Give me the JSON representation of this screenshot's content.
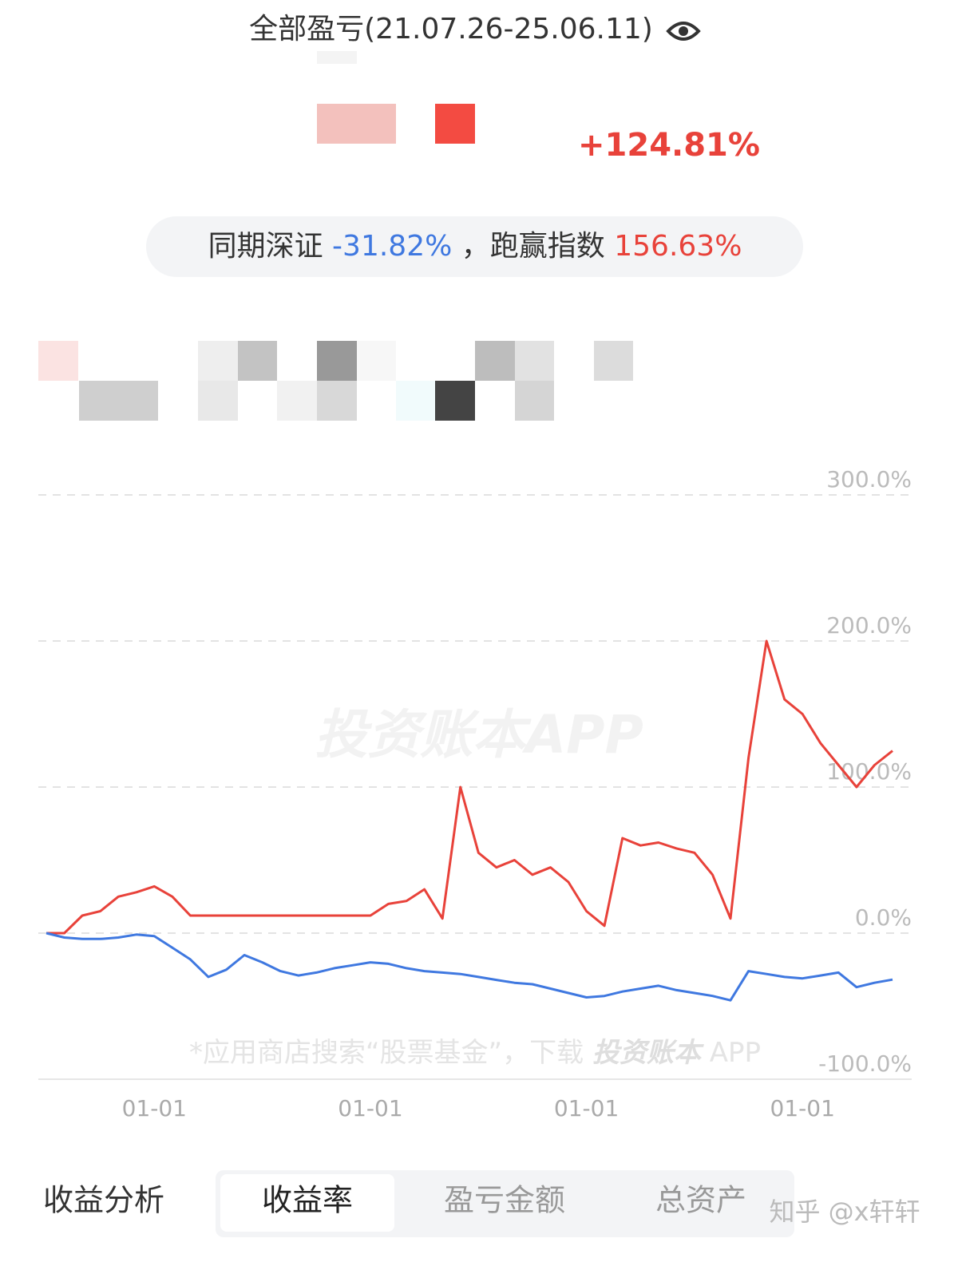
{
  "header": {
    "title": "全部盈亏(21.07.26-25.06.11)",
    "total_return": "+124.81%"
  },
  "benchmark": {
    "label": "同期深证",
    "value": "-31.82%",
    "label2": "，跑赢指数",
    "value2": "156.63%"
  },
  "watermark": "投资账本APP",
  "footer_note": {
    "text": "*应用商店搜索“股票基金”，下载",
    "brand": "投资账本",
    "suffix": "APP"
  },
  "chart_data": {
    "type": "line",
    "categories": [
      null,
      null,
      null,
      null,
      null,
      null,
      "01-01",
      null,
      null,
      null,
      null,
      null,
      null,
      null,
      null,
      null,
      null,
      null,
      "01-01",
      null,
      null,
      null,
      null,
      null,
      null,
      null,
      null,
      null,
      null,
      null,
      "01-01",
      null,
      null,
      null,
      null,
      null,
      null,
      null,
      null,
      null,
      null,
      null,
      "01-01",
      null,
      null,
      null,
      null,
      null
    ],
    "series": [
      {
        "color": "#e8423a",
        "values": [
          0,
          0,
          12,
          15,
          25,
          28,
          32,
          25,
          12,
          12,
          12,
          12,
          12,
          12,
          12,
          12,
          12,
          12,
          12,
          20,
          22,
          30,
          10,
          100,
          55,
          45,
          50,
          40,
          45,
          35,
          15,
          5,
          65,
          60,
          62,
          58,
          55,
          40,
          10,
          120,
          200,
          160,
          150,
          130,
          115,
          100,
          115,
          124.81
        ]
      },
      {
        "color": "#3f78e0",
        "values": [
          0,
          -3,
          -4,
          -4,
          -3,
          -1,
          -2,
          -10,
          -18,
          -30,
          -25,
          -15,
          -20,
          -26,
          -29,
          -27,
          -24,
          -22,
          -20,
          -21,
          -24,
          -26,
          -27,
          -28,
          -30,
          -32,
          -34,
          -35,
          -38,
          -41,
          -44,
          -43,
          -40,
          -38,
          -36,
          -39,
          -41,
          -43,
          -46,
          -26,
          -28,
          -30,
          -31,
          -29,
          -27,
          -37,
          -34,
          -31.82
        ]
      }
    ],
    "ylim": [
      -100,
      300
    ],
    "yticks": [
      {
        "value": -100,
        "label": "-100.0%"
      },
      {
        "value": 0,
        "label": "0.0%"
      },
      {
        "value": 100,
        "label": "100.0%"
      },
      {
        "value": 200,
        "label": "200.0%"
      },
      {
        "value": 300,
        "label": "300.0%"
      }
    ],
    "grid": true
  },
  "tabs": {
    "title": "收益分析",
    "items": [
      "收益率",
      "盈亏金额",
      "总资产"
    ]
  },
  "credit": "知乎 @x轩轩"
}
